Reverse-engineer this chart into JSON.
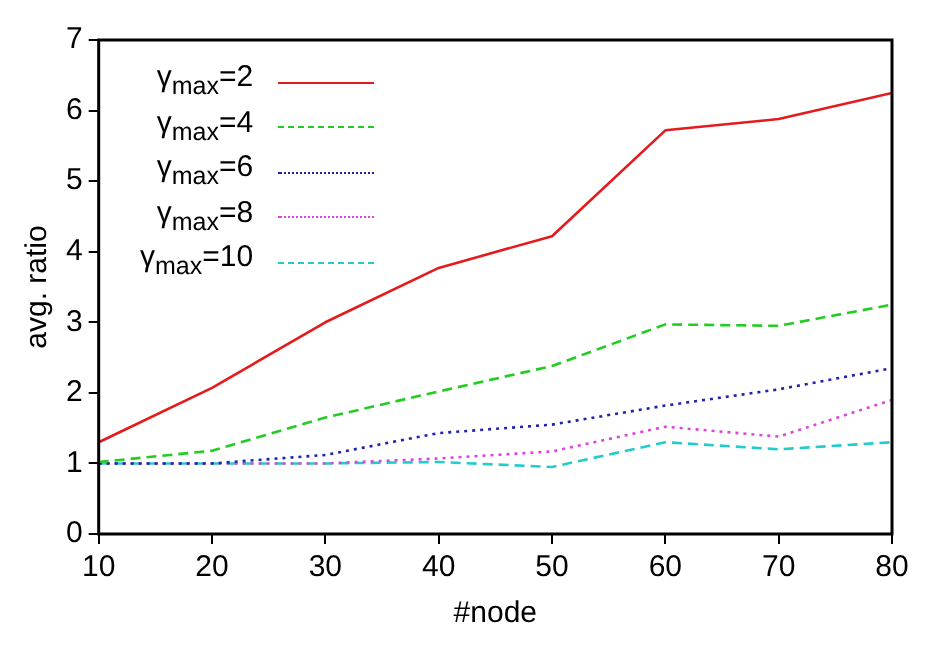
{
  "chart_data": {
    "type": "line",
    "xlabel": "#node",
    "ylabel": "avg. ratio",
    "x": [
      10,
      20,
      30,
      40,
      50,
      60,
      70,
      80
    ],
    "xlim": [
      10,
      80
    ],
    "xticks": [
      10,
      20,
      30,
      40,
      50,
      60,
      70,
      80
    ],
    "ylim": [
      0,
      7
    ],
    "yticks": [
      0,
      1,
      2,
      3,
      4,
      5,
      6,
      7
    ],
    "grid": false,
    "legend": "top left",
    "marker": "none",
    "series": [
      {
        "name": "γ$_{max}$=2",
        "color": "#e41a1c",
        "line_style": "solid",
        "values": [
          1.3,
          2.07,
          3.0,
          3.77,
          4.22,
          5.72,
          5.88,
          6.25
        ]
      },
      {
        "name": "γ$_{max}$=4",
        "color": "#22cc22",
        "line_style": "dashed",
        "values": [
          1.02,
          1.18,
          1.65,
          2.02,
          2.38,
          2.97,
          2.95,
          3.25
        ]
      },
      {
        "name": "γ$_{max}$=6",
        "color": "#2222aa",
        "line_style": "dotted",
        "values": [
          1.0,
          1.0,
          1.12,
          1.43,
          1.55,
          1.82,
          2.05,
          2.35
        ]
      },
      {
        "name": "γ$_{max}$=8",
        "color": "#dd44dd",
        "line_style": "dotted",
        "values": [
          1.0,
          1.0,
          1.0,
          1.07,
          1.17,
          1.52,
          1.38,
          1.9
        ]
      },
      {
        "name": "γ$_{max}$=10",
        "color": "#22cccc",
        "line_style": "dashed",
        "values": [
          1.0,
          1.0,
          1.0,
          1.02,
          0.95,
          1.3,
          1.2,
          1.3
        ]
      }
    ]
  }
}
